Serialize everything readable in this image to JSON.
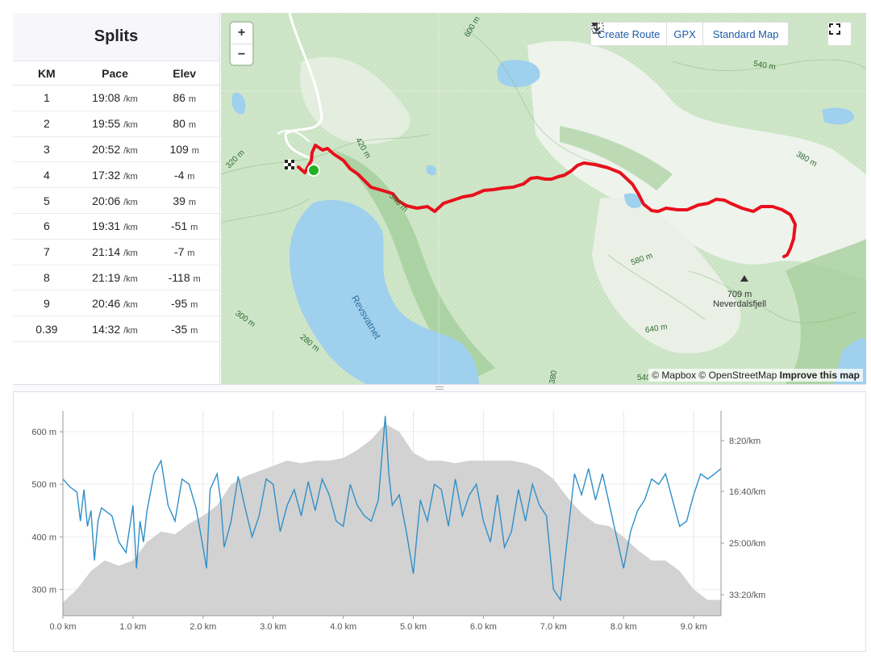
{
  "splits": {
    "title": "Splits",
    "columns": [
      "KM",
      "Pace",
      "Elev"
    ],
    "rows": [
      {
        "km": "1",
        "pace": "19:08",
        "pace_unit": "/km",
        "elev": "86",
        "elev_unit": "m"
      },
      {
        "km": "2",
        "pace": "19:55",
        "pace_unit": "/km",
        "elev": "80",
        "elev_unit": "m"
      },
      {
        "km": "3",
        "pace": "20:52",
        "pace_unit": "/km",
        "elev": "109",
        "elev_unit": "m"
      },
      {
        "km": "4",
        "pace": "17:32",
        "pace_unit": "/km",
        "elev": "-4",
        "elev_unit": "m"
      },
      {
        "km": "5",
        "pace": "20:06",
        "pace_unit": "/km",
        "elev": "39",
        "elev_unit": "m"
      },
      {
        "km": "6",
        "pace": "19:31",
        "pace_unit": "/km",
        "elev": "-51",
        "elev_unit": "m"
      },
      {
        "km": "7",
        "pace": "21:14",
        "pace_unit": "/km",
        "elev": "-7",
        "elev_unit": "m"
      },
      {
        "km": "8",
        "pace": "21:19",
        "pace_unit": "/km",
        "elev": "-118",
        "elev_unit": "m"
      },
      {
        "km": "9",
        "pace": "20:46",
        "pace_unit": "/km",
        "elev": "-95",
        "elev_unit": "m"
      },
      {
        "km": "0.39",
        "pace": "14:32",
        "pace_unit": "/km",
        "elev": "-35",
        "elev_unit": "m"
      }
    ]
  },
  "map": {
    "zoom_in": "+",
    "zoom_out": "−",
    "create_route": "Create Route",
    "gpx": "GPX",
    "map_style": "Standard Map",
    "attribution_a": "© Mapbox © OpenStreetMap",
    "attribution_b": "Improve this map",
    "lake_name": "Revsvatnet",
    "peak_elev": "709 m",
    "peak_name": "Neverdalsfjell",
    "contour_labels": [
      "600 m",
      "540 m",
      "420 m",
      "320 m",
      "340 m",
      "380 m",
      "580 m",
      "640 m",
      "300 m",
      "280 m",
      "380",
      "540"
    ],
    "route_color": "#e8101c",
    "start_marker_color": "#1fb21f",
    "water_color": "#9fd0ee"
  },
  "chart_data": {
    "type": "area+line",
    "x_unit": "km",
    "x_ticks": [
      "0.0 km",
      "1.0 km",
      "2.0 km",
      "3.0 km",
      "4.0 km",
      "5.0 km",
      "6.0 km",
      "7.0 km",
      "8.0 km",
      "9.0 km"
    ],
    "xlim": [
      0,
      9.39
    ],
    "y_left_ticks": [
      "300 m",
      "400 m",
      "500 m",
      "600 m"
    ],
    "y_left_lim": [
      250,
      640
    ],
    "y_right_ticks": [
      "8:20/km",
      "16:40/km",
      "25:00/km",
      "33:20/km"
    ],
    "grid": true,
    "series": [
      {
        "kind": "elevation",
        "color": "#d2d2d2",
        "x": [
          0,
          0.2,
          0.4,
          0.6,
          0.8,
          1.0,
          1.2,
          1.4,
          1.6,
          1.8,
          2.0,
          2.2,
          2.4,
          2.6,
          2.8,
          3.0,
          3.2,
          3.4,
          3.6,
          3.8,
          4.0,
          4.2,
          4.4,
          4.6,
          4.8,
          5.0,
          5.2,
          5.4,
          5.6,
          5.8,
          6.0,
          6.2,
          6.4,
          6.6,
          6.8,
          7.0,
          7.2,
          7.4,
          7.6,
          7.8,
          8.0,
          8.2,
          8.4,
          8.6,
          8.8,
          9.0,
          9.2,
          9.39
        ],
        "values": [
          275,
          300,
          335,
          355,
          345,
          355,
          390,
          410,
          405,
          425,
          440,
          460,
          500,
          515,
          525,
          535,
          545,
          540,
          545,
          545,
          550,
          565,
          585,
          615,
          600,
          560,
          545,
          545,
          540,
          545,
          545,
          545,
          545,
          540,
          530,
          510,
          475,
          445,
          425,
          420,
          400,
          375,
          355,
          355,
          335,
          300,
          280,
          280
        ]
      },
      {
        "kind": "pace",
        "color": "#2e8fc9",
        "x": [
          0,
          0.1,
          0.2,
          0.25,
          0.3,
          0.35,
          0.4,
          0.45,
          0.5,
          0.55,
          0.6,
          0.7,
          0.8,
          0.9,
          1.0,
          1.05,
          1.1,
          1.15,
          1.2,
          1.3,
          1.4,
          1.5,
          1.6,
          1.7,
          1.8,
          1.9,
          2.0,
          2.05,
          2.1,
          2.2,
          2.25,
          2.3,
          2.4,
          2.5,
          2.6,
          2.7,
          2.8,
          2.9,
          3.0,
          3.1,
          3.2,
          3.3,
          3.4,
          3.5,
          3.6,
          3.7,
          3.8,
          3.9,
          4.0,
          4.1,
          4.2,
          4.3,
          4.4,
          4.5,
          4.6,
          4.65,
          4.7,
          4.8,
          4.9,
          5.0,
          5.1,
          5.2,
          5.3,
          5.4,
          5.5,
          5.6,
          5.7,
          5.8,
          5.9,
          6.0,
          6.1,
          6.2,
          6.3,
          6.4,
          6.5,
          6.6,
          6.7,
          6.8,
          6.9,
          7.0,
          7.1,
          7.2,
          7.3,
          7.4,
          7.5,
          7.6,
          7.7,
          7.8,
          7.9,
          8.0,
          8.1,
          8.2,
          8.3,
          8.4,
          8.5,
          8.6,
          8.7,
          8.8,
          8.9,
          9.0,
          9.1,
          9.2,
          9.3,
          9.39
        ],
        "values": [
          510,
          495,
          485,
          430,
          490,
          420,
          450,
          355,
          430,
          455,
          450,
          440,
          390,
          370,
          460,
          340,
          430,
          390,
          450,
          520,
          545,
          460,
          430,
          510,
          500,
          455,
          380,
          340,
          490,
          520,
          470,
          380,
          430,
          515,
          455,
          400,
          440,
          510,
          500,
          410,
          460,
          490,
          440,
          505,
          450,
          510,
          480,
          430,
          420,
          500,
          460,
          440,
          430,
          470,
          630,
          520,
          460,
          480,
          410,
          330,
          470,
          430,
          500,
          490,
          420,
          510,
          440,
          480,
          500,
          430,
          390,
          480,
          380,
          410,
          490,
          430,
          500,
          460,
          440,
          300,
          280,
          400,
          520,
          480,
          530,
          470,
          520,
          460,
          400,
          340,
          410,
          450,
          470,
          510,
          500,
          520,
          470,
          420,
          430,
          480,
          520,
          510,
          520,
          530
        ]
      }
    ]
  }
}
